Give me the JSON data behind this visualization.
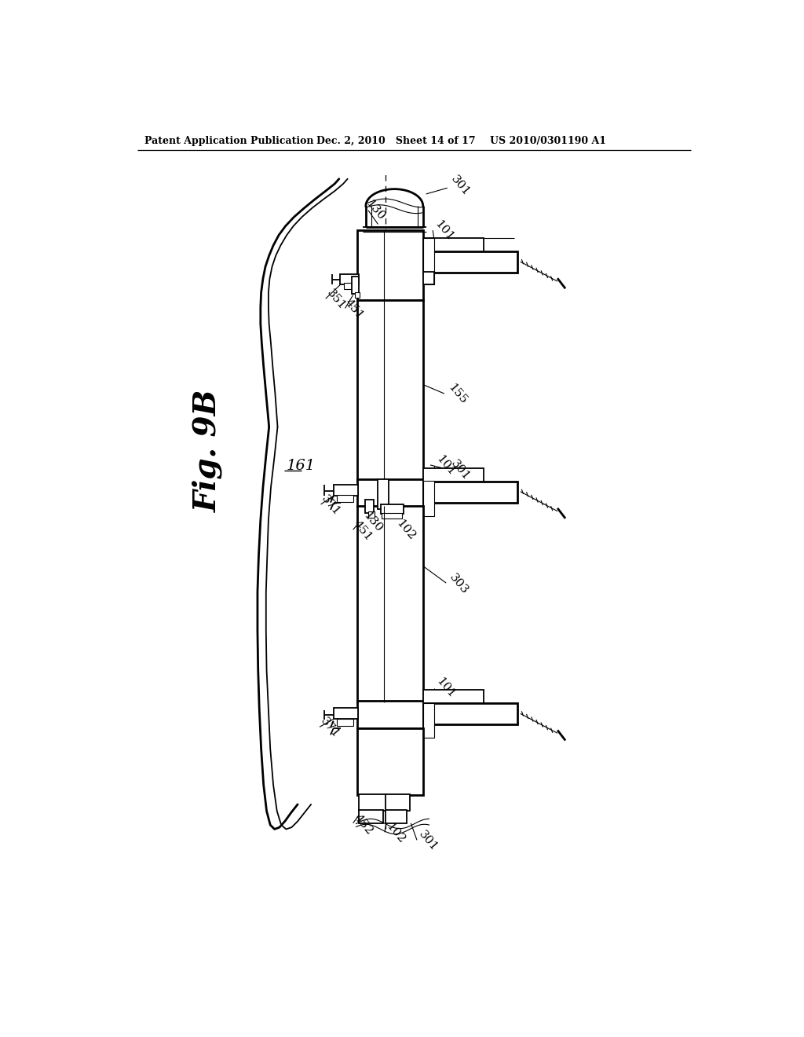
{
  "bg_color": "#ffffff",
  "header_left": "Patent Application Publication",
  "header_mid": "Dec. 2, 2010   Sheet 14 of 17",
  "header_right": "US 2010/0301190 A1",
  "fig_label": "Fig. 9B",
  "label_161": "161"
}
